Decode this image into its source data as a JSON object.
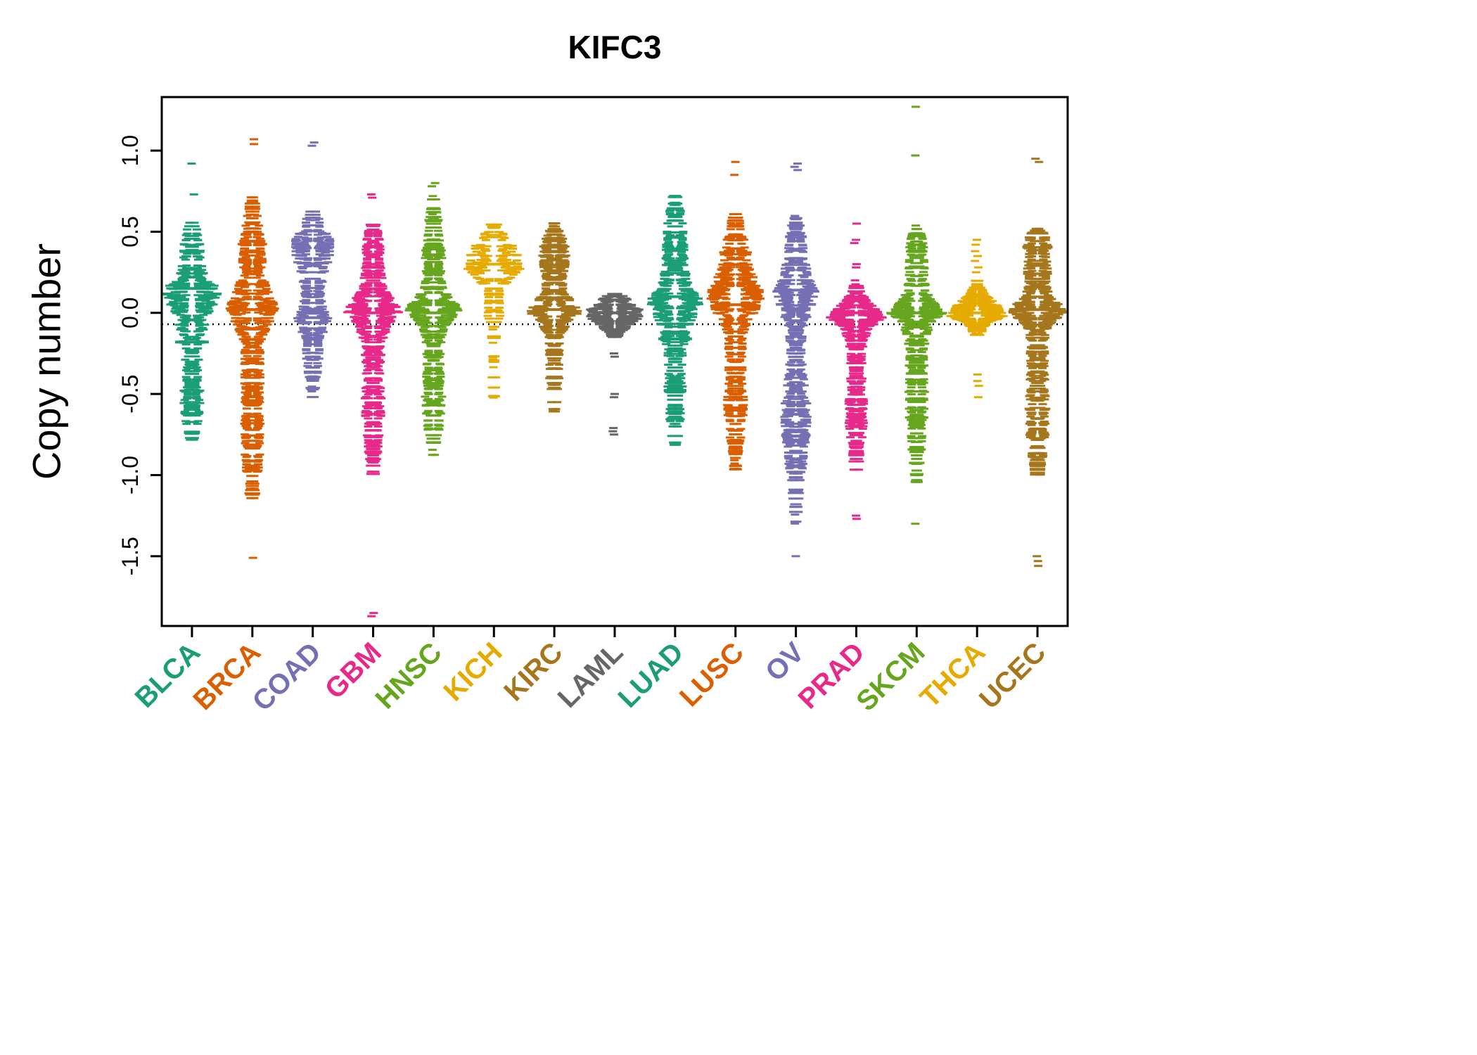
{
  "chart_data": {
    "type": "scatter",
    "subtype": "violin-strip-of-dashes",
    "title": "KIFC3",
    "ylabel": "Copy number",
    "xlabel": "",
    "ylim": [
      -1.93,
      1.33
    ],
    "yticks": [
      1.0,
      0.5,
      0.0,
      -0.5,
      -1.0,
      -1.5
    ],
    "ytick_labels": [
      "1.0",
      "0.5",
      "0.0",
      "-0.5",
      "-1.0",
      "-1.5"
    ],
    "baseline_y": -0.07,
    "grid": false,
    "legend": "none",
    "point_glyph": "horizontal-dash",
    "series": [
      {
        "name": "BLCA",
        "color": "#1B9E77",
        "seed": 101,
        "n": 230,
        "profile": [
          [
            -0.8,
            0.12
          ],
          [
            -0.65,
            0.3
          ],
          [
            -0.5,
            0.32
          ],
          [
            -0.35,
            0.22
          ],
          [
            -0.2,
            0.3
          ],
          [
            -0.1,
            0.45
          ],
          [
            -0.02,
            0.6
          ],
          [
            0.06,
            0.85
          ],
          [
            0.14,
            1.0
          ],
          [
            0.22,
            0.55
          ],
          [
            0.32,
            0.35
          ],
          [
            0.45,
            0.3
          ],
          [
            0.57,
            0.1
          ]
        ],
        "outliers": [
          0.73,
          0.92
        ],
        "median_bars": [
          0.15,
          -0.18
        ]
      },
      {
        "name": "BRCA",
        "color": "#D95F02",
        "seed": 102,
        "n": 320,
        "profile": [
          [
            -1.15,
            0.12
          ],
          [
            -1.0,
            0.22
          ],
          [
            -0.85,
            0.3
          ],
          [
            -0.7,
            0.32
          ],
          [
            -0.55,
            0.28
          ],
          [
            -0.4,
            0.3
          ],
          [
            -0.25,
            0.3
          ],
          [
            -0.12,
            0.45
          ],
          [
            -0.04,
            0.8
          ],
          [
            0.02,
            1.0
          ],
          [
            0.1,
            0.7
          ],
          [
            0.2,
            0.45
          ],
          [
            0.3,
            0.4
          ],
          [
            0.4,
            0.45
          ],
          [
            0.5,
            0.3
          ],
          [
            0.6,
            0.2
          ],
          [
            0.72,
            0.12
          ]
        ],
        "outliers": [
          1.07,
          1.04,
          -1.51
        ],
        "median_bars": [
          0.02,
          -0.1
        ]
      },
      {
        "name": "COAD",
        "color": "#7570B3",
        "seed": 103,
        "n": 190,
        "profile": [
          [
            -0.57,
            0.08
          ],
          [
            -0.45,
            0.12
          ],
          [
            -0.32,
            0.22
          ],
          [
            -0.2,
            0.3
          ],
          [
            -0.1,
            0.45
          ],
          [
            -0.03,
            0.6
          ],
          [
            0.02,
            0.45
          ],
          [
            0.1,
            0.3
          ],
          [
            0.2,
            0.4
          ],
          [
            0.3,
            0.55
          ],
          [
            0.38,
            0.7
          ],
          [
            0.45,
            0.65
          ],
          [
            0.52,
            0.45
          ],
          [
            0.58,
            0.25
          ],
          [
            0.63,
            0.1
          ]
        ],
        "outliers": [
          1.05,
          1.03
        ],
        "median_bars": [
          -0.03
        ]
      },
      {
        "name": "GBM",
        "color": "#E7298A",
        "seed": 104,
        "n": 280,
        "profile": [
          [
            -1.0,
            0.1
          ],
          [
            -0.88,
            0.18
          ],
          [
            -0.75,
            0.25
          ],
          [
            -0.62,
            0.3
          ],
          [
            -0.5,
            0.32
          ],
          [
            -0.38,
            0.28
          ],
          [
            -0.25,
            0.32
          ],
          [
            -0.15,
            0.4
          ],
          [
            -0.07,
            0.6
          ],
          [
            0.0,
            1.0
          ],
          [
            0.07,
            0.8
          ],
          [
            0.15,
            0.45
          ],
          [
            0.25,
            0.3
          ],
          [
            0.35,
            0.3
          ],
          [
            0.45,
            0.25
          ],
          [
            0.55,
            0.12
          ]
        ],
        "outliers": [
          0.73,
          0.71,
          -1.85,
          -1.87
        ],
        "median_bars": [
          0.0
        ]
      },
      {
        "name": "HNSC",
        "color": "#66A61E",
        "seed": 105,
        "n": 260,
        "profile": [
          [
            -0.9,
            0.1
          ],
          [
            -0.78,
            0.18
          ],
          [
            -0.65,
            0.28
          ],
          [
            -0.52,
            0.32
          ],
          [
            -0.4,
            0.28
          ],
          [
            -0.28,
            0.25
          ],
          [
            -0.18,
            0.3
          ],
          [
            -0.1,
            0.4
          ],
          [
            -0.03,
            0.7
          ],
          [
            0.02,
            1.0
          ],
          [
            0.08,
            0.7
          ],
          [
            0.15,
            0.4
          ],
          [
            0.25,
            0.3
          ],
          [
            0.35,
            0.32
          ],
          [
            0.45,
            0.28
          ],
          [
            0.55,
            0.2
          ],
          [
            0.65,
            0.15
          ],
          [
            0.72,
            0.08
          ]
        ],
        "outliers": [
          0.8,
          0.78
        ],
        "median_bars": [
          0.0
        ]
      },
      {
        "name": "KICH",
        "color": "#E6AB02",
        "seed": 106,
        "n": 120,
        "profile": [
          [
            -0.55,
            0.06
          ],
          [
            -0.45,
            0.08
          ],
          [
            -0.35,
            0.08
          ],
          [
            -0.25,
            0.08
          ],
          [
            -0.15,
            0.12
          ],
          [
            -0.05,
            0.2
          ],
          [
            0.02,
            0.3
          ],
          [
            0.08,
            0.2
          ],
          [
            0.14,
            0.25
          ],
          [
            0.2,
            0.6
          ],
          [
            0.26,
            1.0
          ],
          [
            0.32,
            1.0
          ],
          [
            0.38,
            0.85
          ],
          [
            0.44,
            0.6
          ],
          [
            0.5,
            0.3
          ],
          [
            0.58,
            0.1
          ]
        ],
        "outliers": [],
        "median_bars": [
          0.3
        ]
      },
      {
        "name": "KIRC",
        "color": "#A6761D",
        "seed": 107,
        "n": 230,
        "profile": [
          [
            -0.62,
            0.08
          ],
          [
            -0.52,
            0.12
          ],
          [
            -0.42,
            0.18
          ],
          [
            -0.32,
            0.22
          ],
          [
            -0.22,
            0.2
          ],
          [
            -0.14,
            0.25
          ],
          [
            -0.06,
            0.5
          ],
          [
            0.0,
            1.0
          ],
          [
            0.06,
            0.7
          ],
          [
            0.12,
            0.4
          ],
          [
            0.2,
            0.3
          ],
          [
            0.3,
            0.42
          ],
          [
            0.38,
            0.45
          ],
          [
            0.45,
            0.35
          ],
          [
            0.52,
            0.15
          ],
          [
            0.56,
            0.08
          ]
        ],
        "outliers": [],
        "median_bars": [
          0.02
        ]
      },
      {
        "name": "LAML",
        "color": "#666666",
        "seed": 108,
        "n": 150,
        "profile": [
          [
            -0.15,
            0.15
          ],
          [
            -0.08,
            0.5
          ],
          [
            -0.02,
            1.0
          ],
          [
            0.03,
            0.9
          ],
          [
            0.08,
            0.5
          ],
          [
            0.13,
            0.15
          ]
        ],
        "outliers": [
          -0.25,
          -0.27,
          -0.5,
          -0.52,
          -0.71,
          -0.73,
          -0.75
        ],
        "median_bars": [
          0.0
        ]
      },
      {
        "name": "LUAD",
        "color": "#1B9E77",
        "seed": 109,
        "n": 280,
        "profile": [
          [
            -0.82,
            0.1
          ],
          [
            -0.7,
            0.18
          ],
          [
            -0.58,
            0.25
          ],
          [
            -0.46,
            0.28
          ],
          [
            -0.34,
            0.25
          ],
          [
            -0.24,
            0.3
          ],
          [
            -0.16,
            0.4
          ],
          [
            -0.08,
            0.5
          ],
          [
            0.0,
            0.8
          ],
          [
            0.08,
            1.0
          ],
          [
            0.16,
            0.6
          ],
          [
            0.25,
            0.4
          ],
          [
            0.35,
            0.35
          ],
          [
            0.45,
            0.35
          ],
          [
            0.55,
            0.3
          ],
          [
            0.65,
            0.2
          ],
          [
            0.73,
            0.1
          ]
        ],
        "outliers": [],
        "median_bars": [
          0.1,
          -0.16
        ]
      },
      {
        "name": "LUSC",
        "color": "#D95F02",
        "seed": 110,
        "n": 280,
        "profile": [
          [
            -1.0,
            0.08
          ],
          [
            -0.88,
            0.15
          ],
          [
            -0.75,
            0.22
          ],
          [
            -0.62,
            0.3
          ],
          [
            -0.5,
            0.32
          ],
          [
            -0.4,
            0.28
          ],
          [
            -0.3,
            0.25
          ],
          [
            -0.2,
            0.3
          ],
          [
            -0.12,
            0.35
          ],
          [
            -0.05,
            0.5
          ],
          [
            0.02,
            0.8
          ],
          [
            0.1,
            1.0
          ],
          [
            0.18,
            0.8
          ],
          [
            0.28,
            0.55
          ],
          [
            0.38,
            0.45
          ],
          [
            0.48,
            0.3
          ],
          [
            0.58,
            0.15
          ],
          [
            0.63,
            0.08
          ]
        ],
        "outliers": [
          0.93,
          0.85
        ],
        "median_bars": [
          0.05
        ]
      },
      {
        "name": "OV",
        "color": "#7570B3",
        "seed": 111,
        "n": 320,
        "profile": [
          [
            -1.3,
            0.08
          ],
          [
            -1.18,
            0.12
          ],
          [
            -1.05,
            0.18
          ],
          [
            -0.92,
            0.28
          ],
          [
            -0.8,
            0.38
          ],
          [
            -0.68,
            0.45
          ],
          [
            -0.56,
            0.42
          ],
          [
            -0.45,
            0.35
          ],
          [
            -0.35,
            0.28
          ],
          [
            -0.26,
            0.22
          ],
          [
            -0.18,
            0.25
          ],
          [
            -0.1,
            0.3
          ],
          [
            -0.02,
            0.45
          ],
          [
            0.06,
            0.65
          ],
          [
            0.14,
            0.8
          ],
          [
            0.22,
            0.5
          ],
          [
            0.32,
            0.35
          ],
          [
            0.42,
            0.3
          ],
          [
            0.52,
            0.2
          ],
          [
            0.6,
            0.1
          ]
        ],
        "outliers": [
          0.92,
          0.9,
          0.88,
          -1.5
        ],
        "median_bars": [
          0.14
        ]
      },
      {
        "name": "PRAD",
        "color": "#E7298A",
        "seed": 112,
        "n": 240,
        "profile": [
          [
            -0.98,
            0.1
          ],
          [
            -0.88,
            0.15
          ],
          [
            -0.78,
            0.22
          ],
          [
            -0.68,
            0.28
          ],
          [
            -0.58,
            0.3
          ],
          [
            -0.48,
            0.25
          ],
          [
            -0.38,
            0.22
          ],
          [
            -0.28,
            0.25
          ],
          [
            -0.18,
            0.3
          ],
          [
            -0.1,
            0.45
          ],
          [
            -0.03,
            1.0
          ],
          [
            0.03,
            0.7
          ],
          [
            0.08,
            0.4
          ],
          [
            0.13,
            0.2
          ],
          [
            0.18,
            0.1
          ]
        ],
        "outliers": [
          0.55,
          0.45,
          0.43,
          0.3,
          0.28,
          0.2,
          -1.25,
          -1.27
        ],
        "median_bars": [
          0.0
        ]
      },
      {
        "name": "SKCM",
        "color": "#66A61E",
        "seed": 113,
        "n": 260,
        "profile": [
          [
            -1.05,
            0.08
          ],
          [
            -0.95,
            0.12
          ],
          [
            -0.85,
            0.18
          ],
          [
            -0.72,
            0.25
          ],
          [
            -0.6,
            0.3
          ],
          [
            -0.5,
            0.32
          ],
          [
            -0.4,
            0.28
          ],
          [
            -0.3,
            0.3
          ],
          [
            -0.2,
            0.32
          ],
          [
            -0.12,
            0.4
          ],
          [
            -0.05,
            0.6
          ],
          [
            0.0,
            1.0
          ],
          [
            0.06,
            0.65
          ],
          [
            0.12,
            0.4
          ],
          [
            0.2,
            0.3
          ],
          [
            0.3,
            0.3
          ],
          [
            0.4,
            0.28
          ],
          [
            0.48,
            0.2
          ],
          [
            0.55,
            0.1
          ]
        ],
        "outliers": [
          1.27,
          0.97,
          -1.3
        ],
        "median_bars": [
          0.0
        ]
      },
      {
        "name": "THCA",
        "color": "#E6AB02",
        "seed": 114,
        "n": 170,
        "profile": [
          [
            -0.15,
            0.1
          ],
          [
            -0.08,
            0.3
          ],
          [
            -0.02,
            1.0
          ],
          [
            0.04,
            0.8
          ],
          [
            0.1,
            0.4
          ],
          [
            0.16,
            0.15
          ],
          [
            0.2,
            0.08
          ]
        ],
        "outliers": [
          0.45,
          0.42,
          0.38,
          0.35,
          0.32,
          0.28,
          0.25,
          -0.38,
          -0.42,
          -0.45,
          -0.52
        ],
        "median_bars": [
          0.0
        ]
      },
      {
        "name": "UCEC",
        "color": "#A6761D",
        "seed": 115,
        "n": 300,
        "profile": [
          [
            -1.0,
            0.12
          ],
          [
            -0.9,
            0.2
          ],
          [
            -0.8,
            0.28
          ],
          [
            -0.7,
            0.32
          ],
          [
            -0.6,
            0.35
          ],
          [
            -0.5,
            0.32
          ],
          [
            -0.4,
            0.28
          ],
          [
            -0.3,
            0.28
          ],
          [
            -0.2,
            0.3
          ],
          [
            -0.12,
            0.35
          ],
          [
            -0.05,
            0.6
          ],
          [
            0.0,
            1.0
          ],
          [
            0.06,
            0.8
          ],
          [
            0.12,
            0.45
          ],
          [
            0.2,
            0.35
          ],
          [
            0.3,
            0.45
          ],
          [
            0.4,
            0.45
          ],
          [
            0.5,
            0.25
          ],
          [
            0.58,
            0.12
          ]
        ],
        "outliers": [
          0.95,
          0.93,
          -1.5,
          -1.53,
          -1.56
        ],
        "median_bars": [
          0.02
        ]
      }
    ]
  }
}
